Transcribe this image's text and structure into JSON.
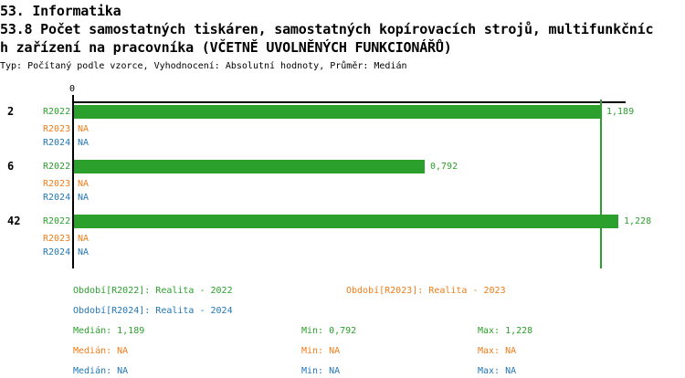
{
  "colors": {
    "r2022": "#2CA02C",
    "r2023": "#EF7D1A",
    "r2024": "#2377B4",
    "axis": "#000000"
  },
  "header": {
    "title_line1": "53. Informatika",
    "title_line2": "53.8 Počet samostatných tiskáren, samostatných kopírovacích strojů, multifunkčníc",
    "title_line3": "h zařízení na pracovníka (VČETNĚ UVOLNĚNÝCH FUNKCIONÁŘŮ)",
    "subtitle": "Typ: Počítaný podle vzorce, Vyhodnocení: Absolutní hodnoty, Průměr: Medián"
  },
  "chart_data": {
    "type": "bar",
    "orientation": "horizontal",
    "title": "53.8 Počet samostatných tiskáren, samostatných kopírovacích strojů, multifunkčních zařízení na pracovníka (VČETNĚ UVOLNĚNÝCH FUNKCIONÁŘŮ)",
    "xlabel": "",
    "ylabel": "",
    "xlim": [
      0,
      1.3
    ],
    "axis_zero_label": "0",
    "grid": false,
    "median_reference_line": 1.189,
    "categories": [
      "2",
      "6",
      "42"
    ],
    "series_names": [
      "R2022",
      "R2023",
      "R2024"
    ],
    "groups": [
      {
        "label": "2",
        "rows": [
          {
            "series": "R2022",
            "color_key": "r2022",
            "value": 1.189,
            "value_label": "1,189"
          },
          {
            "series": "R2023",
            "color_key": "r2023",
            "value": null,
            "value_label": "NA"
          },
          {
            "series": "R2024",
            "color_key": "r2024",
            "value": null,
            "value_label": "NA"
          }
        ]
      },
      {
        "label": "6",
        "rows": [
          {
            "series": "R2022",
            "color_key": "r2022",
            "value": 0.792,
            "value_label": "0,792"
          },
          {
            "series": "R2023",
            "color_key": "r2023",
            "value": null,
            "value_label": "NA"
          },
          {
            "series": "R2024",
            "color_key": "r2024",
            "value": null,
            "value_label": "NA"
          }
        ]
      },
      {
        "label": "42",
        "rows": [
          {
            "series": "R2022",
            "color_key": "r2022",
            "value": 1.228,
            "value_label": "1,228"
          },
          {
            "series": "R2023",
            "color_key": "r2023",
            "value": null,
            "value_label": "NA"
          },
          {
            "series": "R2024",
            "color_key": "r2024",
            "value": null,
            "value_label": "NA"
          }
        ]
      }
    ]
  },
  "legend": {
    "items": [
      {
        "label": "Období[R2022]: Realita - 2022",
        "color_key": "r2022"
      },
      {
        "label": "Období[R2023]: Realita - 2023",
        "color_key": "r2023"
      },
      {
        "label": "Období[R2024]: Realita - 2024",
        "color_key": "r2024"
      }
    ],
    "stats_rows": [
      {
        "color_key": "r2022",
        "median": "Medián: 1,189",
        "min": "Min: 0,792",
        "max": "Max: 1,228"
      },
      {
        "color_key": "r2023",
        "median": "Medián: NA",
        "min": "Min: NA",
        "max": "Max: NA"
      },
      {
        "color_key": "r2024",
        "median": "Medián: NA",
        "min": "Min: NA",
        "max": "Max: NA"
      }
    ]
  }
}
